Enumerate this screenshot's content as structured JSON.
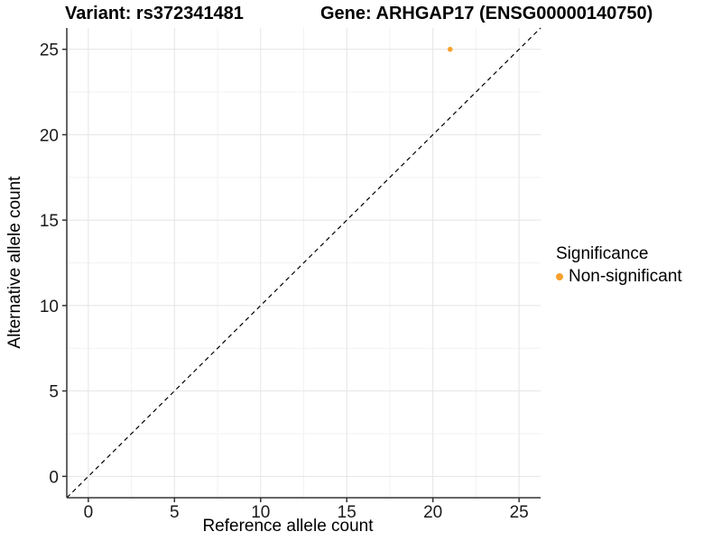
{
  "titles": {
    "variant": "Variant: rs372341481",
    "gene": "Gene: ARHGAP17 (ENSG00000140750)"
  },
  "chart_data": {
    "type": "scatter",
    "xlabel": "Reference allele count",
    "ylabel": "Alternative allele count",
    "xlim": [
      0,
      25
    ],
    "ylim": [
      0,
      25
    ],
    "expansion": 0.05,
    "x_ticks": [
      0,
      5,
      10,
      15,
      20,
      25
    ],
    "y_ticks": [
      0,
      5,
      10,
      15,
      20,
      25
    ],
    "x_minor_ticks": [
      2.5,
      7.5,
      12.5,
      17.5,
      22.5
    ],
    "y_minor_ticks": [
      2.5,
      7.5,
      12.5,
      17.5,
      22.5
    ],
    "grid": true,
    "reference_line": {
      "type": "identity-y-equals-x",
      "style": "dashed",
      "color": "#000000"
    },
    "series": [
      {
        "name": "Non-significant",
        "color": "#F9A02D",
        "points": [
          {
            "x": 21,
            "y": 25
          }
        ]
      }
    ],
    "legend": {
      "title": "Significance",
      "position": "right",
      "items": [
        {
          "label": "Non-significant",
          "color": "#F9A02D"
        }
      ]
    },
    "colors": {
      "grid_major": "#E4E4E4",
      "grid_minor": "#F2F2F2",
      "axis_line": "#333333",
      "tick_text": "#1a1a1a"
    }
  }
}
